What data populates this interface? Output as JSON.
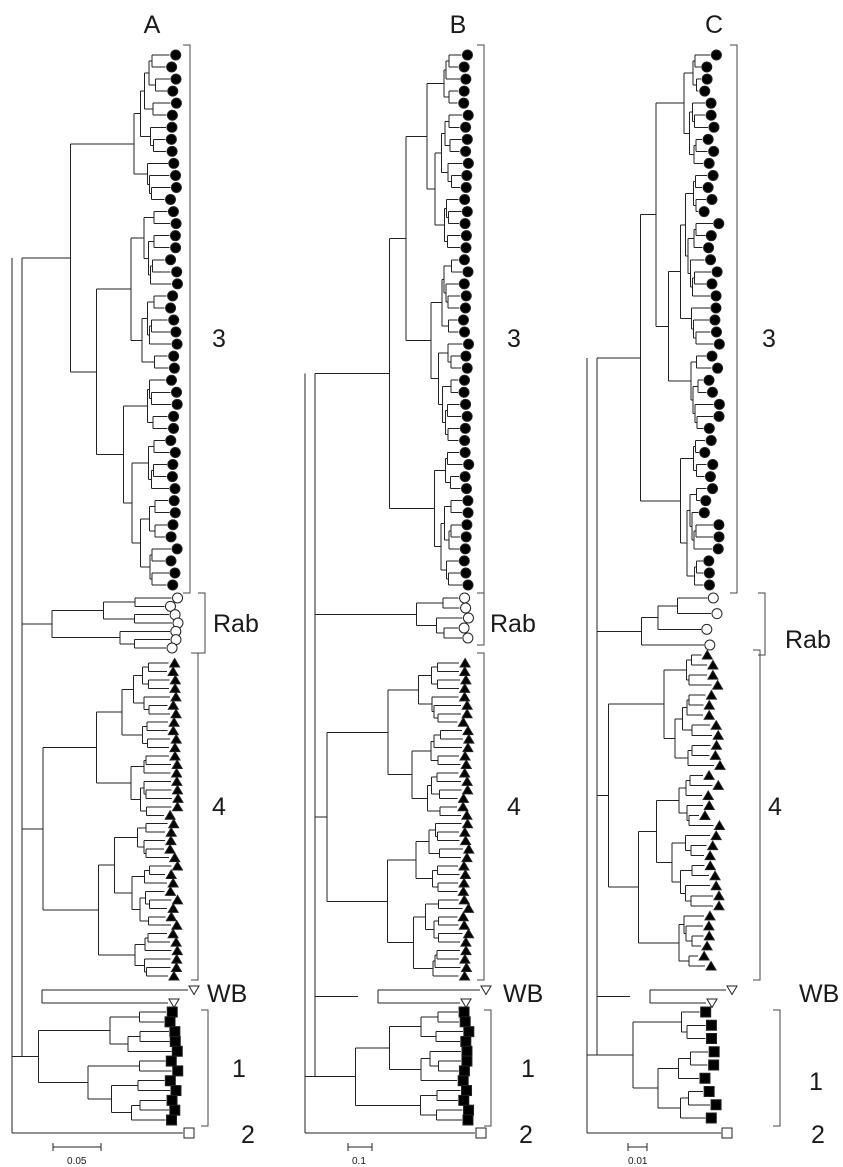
{
  "panels": [
    {
      "id": "A",
      "label": "A",
      "scale_label": "0.05",
      "clades": [
        {
          "label": "3",
          "symbol": "filled-circle",
          "tips": 45
        },
        {
          "label": "Rab",
          "symbol": "open-circle",
          "tips": 7
        },
        {
          "label": "4",
          "symbol": "filled-triangle",
          "tips": 38
        },
        {
          "label": "WB",
          "symbol": "open-triangle",
          "tips": 2
        },
        {
          "label": "1",
          "symbol": "filled-square",
          "tips": 12
        },
        {
          "label": "2",
          "symbol": "open-square",
          "tips": 1
        }
      ]
    },
    {
      "id": "B",
      "label": "B",
      "scale_label": "0.1",
      "clades": [
        {
          "label": "3",
          "symbol": "filled-circle",
          "tips": 45
        },
        {
          "label": "Rab",
          "symbol": "open-circle",
          "tips": 5
        },
        {
          "label": "4",
          "symbol": "filled-triangle",
          "tips": 38
        },
        {
          "label": "WB",
          "symbol": "open-triangle",
          "tips": 2
        },
        {
          "label": "1",
          "symbol": "filled-square",
          "tips": 12
        },
        {
          "label": "2",
          "symbol": "open-square",
          "tips": 1
        }
      ]
    },
    {
      "id": "C",
      "label": "C",
      "scale_label": "0.01",
      "clades": [
        {
          "label": "3",
          "symbol": "filled-circle",
          "tips": 45
        },
        {
          "label": "Rab",
          "symbol": "open-circle",
          "tips": 4
        },
        {
          "label": "4",
          "symbol": "filled-triangle",
          "tips": 32
        },
        {
          "label": "WB",
          "symbol": "open-triangle",
          "tips": 2
        },
        {
          "label": "1",
          "symbol": "filled-square",
          "tips": 9
        },
        {
          "label": "2",
          "symbol": "open-square",
          "tips": 1
        }
      ]
    }
  ],
  "colors": {
    "line": "#222222",
    "symbol_fill": "#000000",
    "symbol_open": "#ffffff"
  }
}
